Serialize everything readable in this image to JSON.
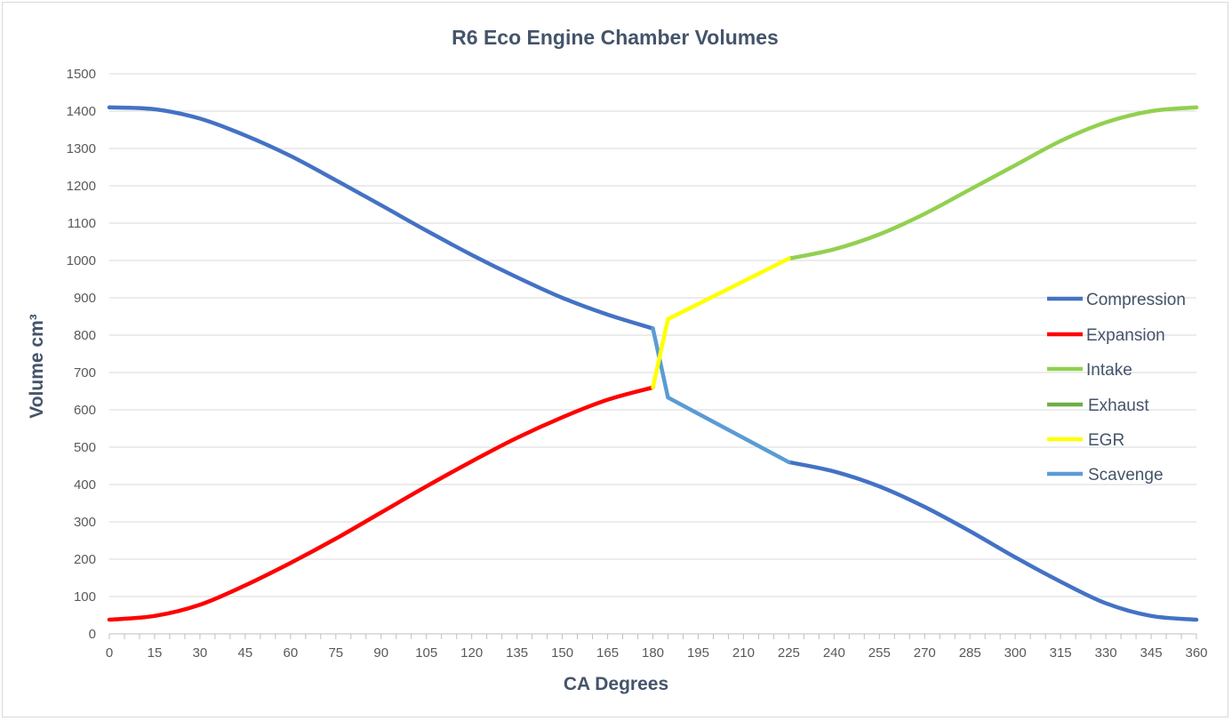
{
  "chart_data": {
    "type": "line",
    "title": "R6 Eco Engine Chamber Volumes",
    "xlabel": "CA Degrees",
    "ylabel": "Volume cm³",
    "xlim": [
      0,
      360
    ],
    "ylim": [
      0,
      1500
    ],
    "xticks": [
      0,
      15,
      30,
      45,
      60,
      75,
      90,
      105,
      120,
      135,
      150,
      165,
      180,
      195,
      210,
      225,
      240,
      255,
      270,
      285,
      300,
      315,
      330,
      345,
      360
    ],
    "yticks": [
      0,
      100,
      200,
      300,
      400,
      500,
      600,
      700,
      800,
      900,
      1000,
      1100,
      1200,
      1300,
      1400,
      1500
    ],
    "grid": "horizontal",
    "legend": "right",
    "series": [
      {
        "name": "Compression",
        "color": "#4472c4",
        "segments": [
          [
            [
              0,
              1410
            ],
            [
              15,
              1405
            ],
            [
              30,
              1380
            ],
            [
              45,
              1335
            ],
            [
              60,
              1280
            ],
            [
              75,
              1215
            ],
            [
              90,
              1148
            ],
            [
              105,
              1080
            ],
            [
              120,
              1015
            ],
            [
              135,
              955
            ],
            [
              150,
              900
            ],
            [
              165,
              855
            ],
            [
              180,
              818
            ]
          ],
          [
            [
              225,
              460
            ],
            [
              240,
              435
            ],
            [
              255,
              395
            ],
            [
              270,
              340
            ],
            [
              285,
              275
            ],
            [
              300,
              205
            ],
            [
              315,
              140
            ],
            [
              330,
              82
            ],
            [
              345,
              48
            ],
            [
              360,
              38
            ]
          ]
        ]
      },
      {
        "name": "Expansion",
        "color": "#ff0000",
        "segments": [
          [
            [
              0,
              38
            ],
            [
              15,
              48
            ],
            [
              30,
              78
            ],
            [
              45,
              130
            ],
            [
              60,
              190
            ],
            [
              75,
              255
            ],
            [
              90,
              325
            ],
            [
              105,
              395
            ],
            [
              120,
              462
            ],
            [
              135,
              525
            ],
            [
              150,
              580
            ],
            [
              165,
              627
            ],
            [
              180,
              660
            ]
          ]
        ]
      },
      {
        "name": "Intake",
        "color": "#92d050",
        "segments": [
          [
            [
              225,
              1005
            ],
            [
              240,
              1030
            ],
            [
              255,
              1070
            ],
            [
              270,
              1125
            ],
            [
              285,
              1190
            ],
            [
              300,
              1255
            ],
            [
              315,
              1320
            ],
            [
              330,
              1370
            ],
            [
              345,
              1400
            ],
            [
              360,
              1410
            ]
          ]
        ]
      },
      {
        "name": "Exhaust",
        "color": "#70ad47",
        "segments": []
      },
      {
        "name": "EGR",
        "color": "#ffff00",
        "segments": [
          [
            [
              180,
              660
            ],
            [
              185,
              843
            ]
          ],
          [
            [
              185,
              843
            ],
            [
              225,
              1005
            ]
          ]
        ]
      },
      {
        "name": "Scavenge",
        "color": "#5b9bd5",
        "segments": [
          [
            [
              180,
              818
            ],
            [
              185,
              633
            ]
          ],
          [
            [
              185,
              633
            ],
            [
              225,
              460
            ]
          ]
        ]
      }
    ]
  }
}
